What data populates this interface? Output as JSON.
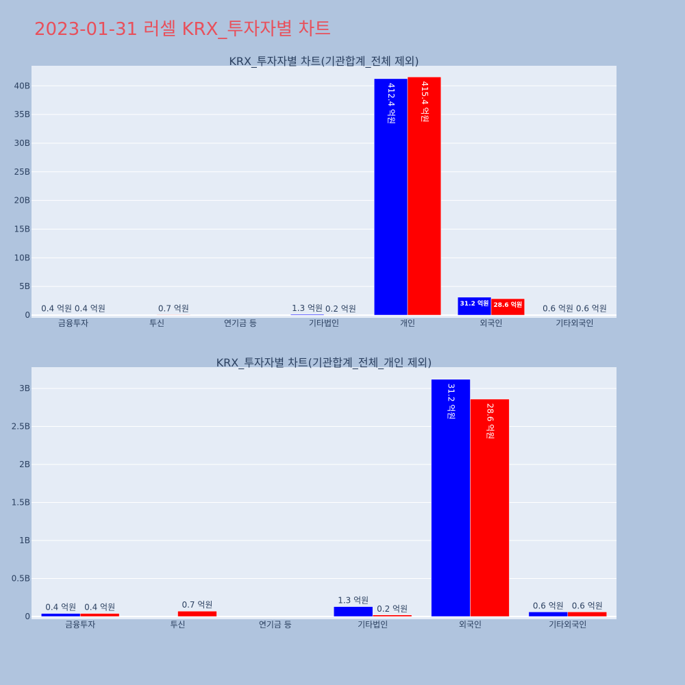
{
  "page_title": "2023-01-31 러셀 KRX_투자자별 차트",
  "colors": {
    "background": "#b0c4de",
    "plot_bg": "#e5ecf6",
    "buy": "#0000ff",
    "sell": "#ff0000",
    "title": "#e8505b"
  },
  "chart_data": [
    {
      "type": "bar",
      "title": "KRX_투자자별 차트(기관합계_전체 제외)",
      "categories": [
        "금융투자",
        "투신",
        "연기금 등",
        "기타법인",
        "개인",
        "외국인",
        "기타외국인"
      ],
      "series": [
        {
          "color": "#0000ff",
          "values": [
            0.04,
            0,
            0,
            0.13,
            41.24,
            3.12,
            0.06
          ],
          "labels": [
            "0.4 억원",
            "",
            "",
            "1.3 억원",
            "412.4 억원",
            "31.2 억원",
            "0.6 억원"
          ]
        },
        {
          "color": "#ff0000",
          "values": [
            0.04,
            0.07,
            0,
            0.02,
            41.54,
            2.86,
            0.06
          ],
          "labels": [
            "0.4 억원",
            "0.7 억원",
            "",
            "0.2 억원",
            "415.4 억원",
            "28.6 억원",
            "0.6 억원"
          ]
        }
      ],
      "yticks": [
        "0",
        "5B",
        "10B",
        "15B",
        "20B",
        "25B",
        "30B",
        "35B",
        "40B"
      ],
      "ytick_values": [
        0,
        5,
        10,
        15,
        20,
        25,
        30,
        35,
        40
      ],
      "ylim": [
        0,
        43.5
      ],
      "grid": true
    },
    {
      "type": "bar",
      "title": "KRX_투자자별 차트(기관합계_전체_개인 제외)",
      "categories": [
        "금융투자",
        "투신",
        "연기금 등",
        "기타법인",
        "외국인",
        "기타외국인"
      ],
      "series": [
        {
          "color": "#0000ff",
          "values": [
            0.04,
            0,
            0,
            0.13,
            3.12,
            0.06
          ],
          "labels": [
            "0.4 억원",
            "",
            "",
            "1.3 억원",
            "31.2 억원",
            "0.6 억원"
          ]
        },
        {
          "color": "#ff0000",
          "values": [
            0.04,
            0.07,
            0,
            0.02,
            2.86,
            0.06
          ],
          "labels": [
            "0.4 억원",
            "0.7 억원",
            "",
            "0.2 억원",
            "28.6 억원",
            "0.6 억원"
          ]
        }
      ],
      "yticks": [
        "0",
        "0.5B",
        "1B",
        "1.5B",
        "2B",
        "2.5B",
        "3B"
      ],
      "ytick_values": [
        0,
        0.5,
        1,
        1.5,
        2,
        2.5,
        3
      ],
      "ylim": [
        0,
        3.28
      ],
      "grid": true
    }
  ]
}
